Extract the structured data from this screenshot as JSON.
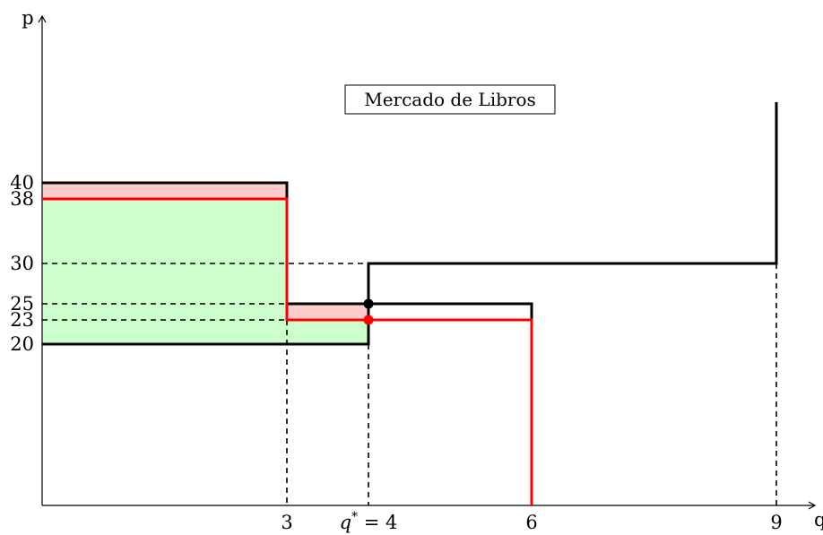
{
  "chart_data": {
    "type": "line",
    "title": "Mercado de Libros",
    "xlabel": "q",
    "ylabel": "p",
    "xlim": [
      0,
      9.5
    ],
    "ylim": [
      0,
      60
    ],
    "grid": false,
    "colors": {
      "demand": "#000000",
      "demand_shifted": "#ff0000",
      "supply": "#000000",
      "surplus_red": "#ffcccc",
      "surplus_green": "#ccffcc"
    },
    "x_ticks": [
      {
        "value": 3,
        "label": "3"
      },
      {
        "value": 4,
        "label": "q* = 4"
      },
      {
        "value": 6,
        "label": "6"
      },
      {
        "value": 9,
        "label": "9"
      }
    ],
    "y_ticks": [
      {
        "value": 40,
        "label": "40"
      },
      {
        "value": 38,
        "label": "38"
      },
      {
        "value": 30,
        "label": "30"
      },
      {
        "value": 25,
        "label": "25"
      },
      {
        "value": 23,
        "label": "23"
      },
      {
        "value": 20,
        "label": "20"
      }
    ],
    "series": [
      {
        "color": "#000000",
        "points": [
          [
            0,
            40
          ],
          [
            3,
            40
          ],
          [
            3,
            25
          ],
          [
            6,
            25
          ],
          [
            6,
            23
          ]
        ]
      },
      {
        "color": "#ff0000",
        "points": [
          [
            0,
            38
          ],
          [
            3,
            38
          ],
          [
            3,
            23
          ],
          [
            6,
            23
          ],
          [
            6,
            0
          ]
        ]
      },
      {
        "color": "#000000",
        "points": [
          [
            0,
            20
          ],
          [
            4,
            20
          ],
          [
            4,
            30
          ],
          [
            9,
            30
          ],
          [
            9,
            50
          ]
        ]
      }
    ],
    "shaded_regions": [
      {
        "color": "#ffcccc",
        "points": [
          [
            0,
            38
          ],
          [
            0,
            40
          ],
          [
            3,
            40
          ],
          [
            3,
            38
          ]
        ]
      },
      {
        "color": "#ffcccc",
        "points": [
          [
            3,
            23
          ],
          [
            3,
            25
          ],
          [
            4,
            25
          ],
          [
            4,
            23
          ]
        ]
      },
      {
        "color": "#ccffcc",
        "points": [
          [
            0,
            20
          ],
          [
            0,
            38
          ],
          [
            3,
            38
          ],
          [
            3,
            23
          ],
          [
            4,
            23
          ],
          [
            4,
            20
          ]
        ]
      }
    ],
    "dashed_lines": [
      [
        [
          0,
          30
        ],
        [
          4,
          30
        ]
      ],
      [
        [
          0,
          25
        ],
        [
          3,
          25
        ]
      ],
      [
        [
          0,
          23
        ],
        [
          3,
          23
        ]
      ],
      [
        [
          3,
          23
        ],
        [
          3,
          0
        ]
      ],
      [
        [
          4,
          20
        ],
        [
          4,
          0
        ]
      ],
      [
        [
          9,
          30
        ],
        [
          9,
          0
        ]
      ]
    ],
    "points": [
      {
        "x": 4,
        "y": 25,
        "color": "#000000"
      },
      {
        "x": 4,
        "y": 23,
        "color": "#ff0000"
      }
    ]
  }
}
